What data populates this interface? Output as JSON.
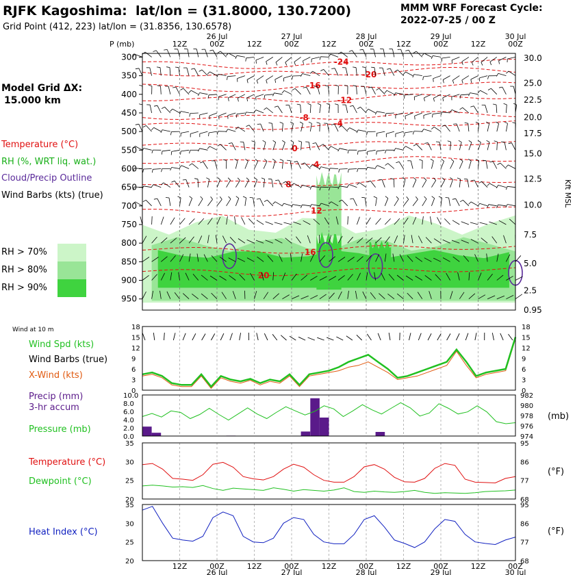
{
  "header": {
    "station": "RJFK Kagoshima:",
    "latlon_title": "lat/lon = (31.8000, 130.7200)",
    "gridpoint": "Grid Point (412, 223) lat/lon = (31.8356, 130.6578)",
    "model_line1": "MMM WRF Forecast Cycle:",
    "model_line2": "2022-07-25 / 00  Z",
    "grid_label_1": "Model Grid ΔX:",
    "grid_label_2": "15.000 km"
  },
  "time_axis": {
    "hours": [
      "12Z",
      "00Z",
      "12Z",
      "00Z",
      "12Z",
      "00Z",
      "12Z",
      "00Z",
      "12Z",
      "00Z"
    ],
    "hour_values": [
      12,
      24,
      36,
      48,
      60,
      72,
      84,
      96,
      108,
      120
    ],
    "dates": [
      "26 Jul",
      "27 Jul",
      "28 Jul",
      "29 Jul",
      "30 Jul"
    ],
    "date_values": [
      24,
      48,
      72,
      96,
      120
    ],
    "range": [
      0,
      120
    ]
  },
  "legend": {
    "temperature": "Temperature (°C)",
    "rh": "RH (%, WRT liq. wat.)",
    "cloud": "Cloud/Precip Outline",
    "barbs": "Wind Barbs (kts) (true)",
    "rh70": "RH > 70%",
    "rh80": "RH > 80%",
    "rh90": "RH > 90%",
    "colors": {
      "rh70": "#ccf5c8",
      "rh80": "#99e597",
      "rh90": "#3fd33f",
      "temp": "#e01010",
      "cloud": "#5a2a9a",
      "rh_text": "#19b019"
    }
  },
  "chart_data": [
    {
      "type": "cross-section",
      "ylabel": "P (mb)",
      "pressure_levels": [
        300,
        350,
        400,
        450,
        500,
        550,
        600,
        650,
        700,
        750,
        800,
        850,
        900,
        950
      ],
      "ylim_mb": [
        290,
        980
      ],
      "kft_label": "Kft MSL",
      "kft_ticks": [
        {
          "label": "30.0",
          "mb": 303
        },
        {
          "label": "25.0",
          "mb": 370
        },
        {
          "label": "22.5",
          "mb": 415
        },
        {
          "label": "20.0",
          "mb": 462
        },
        {
          "label": "17.5",
          "mb": 505
        },
        {
          "label": "15.0",
          "mb": 560
        },
        {
          "label": "12.5",
          "mb": 628
        },
        {
          "label": "10.0",
          "mb": 698
        },
        {
          "label": "7.5",
          "mb": 778
        },
        {
          "label": "5.0",
          "mb": 855
        },
        {
          "label": "2.5",
          "mb": 928
        },
        {
          "label": "0.95",
          "mb": 980
        }
      ],
      "temperature_contours_c": [
        {
          "label": "-24",
          "t": 64,
          "mb": 318
        },
        {
          "label": "-20",
          "t": 73,
          "mb": 340
        },
        {
          "label": "-16",
          "t": 55,
          "mb": 380
        },
        {
          "label": "-12",
          "t": 65,
          "mb": 410
        },
        {
          "label": "-8",
          "t": 52,
          "mb": 458
        },
        {
          "label": "-4",
          "t": 63,
          "mb": 482
        },
        {
          "label": "0",
          "t": 49,
          "mb": 535
        },
        {
          "label": "4",
          "t": 56,
          "mb": 578
        },
        {
          "label": "8",
          "t": 47,
          "mb": 635
        },
        {
          "label": "12",
          "t": 56,
          "mb": 715
        },
        {
          "label": "16",
          "t": 54,
          "mb": 815
        },
        {
          "label": "20",
          "t": 39,
          "mb": 875
        }
      ],
      "rh_regions": [
        {
          "level": "70",
          "t0": 0,
          "t1": 120,
          "mb0": 740,
          "mb1": 960
        },
        {
          "level": "80",
          "t0": 3,
          "t1": 120,
          "mb0": 795,
          "mb1": 955
        },
        {
          "level": "90",
          "t0": 5,
          "t1": 118,
          "mb0": 825,
          "mb1": 920
        },
        {
          "level": "80",
          "t0": 56,
          "t1": 64,
          "mb0": 620,
          "mb1": 780
        },
        {
          "level": "90",
          "t0": 56,
          "t1": 64,
          "mb0": 780,
          "mb1": 925
        },
        {
          "level": "90",
          "t0": 73,
          "t1": 80,
          "mb0": 800,
          "mb1": 890
        }
      ],
      "cloud_outlines": [
        {
          "t": 28,
          "mb": 835
        },
        {
          "t": 59,
          "mb": 832
        },
        {
          "t": 75,
          "mb": 862
        },
        {
          "t": 120,
          "mb": 880
        }
      ]
    },
    {
      "type": "line",
      "title": "Wind at 10 m",
      "series": [
        {
          "name": "Wind Spd (kts)",
          "color": "#20c020",
          "values": [
            4.5,
            5,
            4,
            2,
            1.5,
            1.5,
            4.5,
            1,
            4,
            3,
            2.5,
            3.2,
            2,
            3,
            2.5,
            4.5,
            1.5,
            4.5,
            5,
            5.5,
            6.5,
            8,
            9,
            10,
            8,
            6,
            3.5,
            4,
            5,
            6,
            7,
            8,
            11.5,
            8,
            4,
            5,
            5.5,
            6,
            15
          ]
        },
        {
          "name": "X-Wind (kts)",
          "color": "#e05a10",
          "values": [
            4,
            4.5,
            3.5,
            1.5,
            1,
            1,
            4,
            0.5,
            3.5,
            2.5,
            2,
            2.8,
            1.5,
            2.5,
            2,
            4,
            1,
            4,
            4.5,
            5,
            5.5,
            6.5,
            7,
            8,
            6.5,
            5,
            3,
            3.5,
            4,
            5,
            6,
            7,
            11,
            7,
            3.5,
            4.5,
            5,
            5.5,
            14.5
          ]
        }
      ],
      "labels": {
        "spd": "Wind Spd (kts)",
        "barbs": "Wind Barbs (true)",
        "xwind": "X-Wind (kts)"
      },
      "ylim": [
        0,
        18
      ],
      "yticks": [
        18,
        15,
        12,
        9,
        6,
        3,
        0
      ]
    },
    {
      "type": "bar+line",
      "precip": {
        "name": "Precip (mm) 3-hr accum",
        "color": "#5a1a8a",
        "bars": [
          {
            "t": 1.5,
            "v": 2.3
          },
          {
            "t": 4.5,
            "v": 0.8
          },
          {
            "t": 28.5,
            "v": 0.1
          },
          {
            "t": 52.5,
            "v": 1.1
          },
          {
            "t": 55.5,
            "v": 9.2
          },
          {
            "t": 58.5,
            "v": 4.5
          },
          {
            "t": 76.5,
            "v": 1.0
          }
        ],
        "ylim": [
          0,
          10
        ],
        "yticks": [
          "10.0",
          "8.0",
          "6.0",
          "4.0",
          "2.0",
          "0.0"
        ]
      },
      "pressure": {
        "name": "Pressure (mb)",
        "color": "#20c020",
        "values": [
          977.8,
          978.4,
          977.7,
          978.9,
          978.6,
          977.4,
          978.2,
          979.4,
          978.2,
          977.1,
          978.3,
          979.5,
          978.3,
          977.4,
          978.6,
          979.7,
          978.9,
          978.1,
          978.8,
          979.9,
          979.3,
          977.8,
          978.9,
          980.1,
          979.1,
          978.3,
          979.4,
          980.5,
          979.5,
          977.9,
          978.5,
          980.3,
          979.4,
          978.3,
          978.7,
          979.9,
          978.7,
          976.8,
          976.4,
          976.6
        ],
        "ylim": [
          974,
          982
        ],
        "yticks": [
          982,
          980,
          978,
          976,
          974
        ],
        "unit": "(mb)"
      },
      "labels": {
        "precip1": "Precip (mm)",
        "precip2": "3-hr accum",
        "pressure": "Pressure (mb)"
      }
    },
    {
      "type": "line",
      "series": [
        {
          "name": "Temperature (°C)",
          "color": "#e01010",
          "values": [
            29.2,
            29.5,
            28,
            25.5,
            25.3,
            25,
            26.5,
            29.3,
            29.8,
            28.5,
            26,
            25.4,
            25.1,
            26,
            28,
            29.3,
            28.5,
            26.5,
            25,
            24.5,
            24.5,
            26,
            28.6,
            29.2,
            28,
            25.8,
            24.6,
            24.5,
            25.5,
            28.2,
            29.5,
            29,
            25.3,
            24.5,
            24.4,
            24.3,
            25.5,
            26
          ]
        },
        {
          "name": "Dewpoint (°C)",
          "color": "#20c020",
          "values": [
            23.5,
            23.7,
            23.5,
            23.2,
            23.3,
            23.1,
            23.6,
            22.8,
            22.3,
            22.9,
            22.7,
            22.5,
            22.3,
            23.0,
            22.6,
            22.1,
            22.5,
            22.3,
            22.1,
            22.4,
            23.0,
            22.0,
            21.8,
            22.1,
            21.9,
            21.8,
            22.0,
            22.3,
            21.8,
            21.5,
            21.7,
            21.6,
            21.5,
            21.7,
            22.0,
            22.1,
            22.2,
            22.4
          ]
        }
      ],
      "labels": {
        "temp": "Temperature (°C)",
        "dew": "Dewpoint (°C)",
        "f_unit": "(°F)"
      },
      "ylim": [
        20,
        35
      ],
      "yticks_c": [
        35,
        30,
        25,
        20
      ],
      "yticks_f": [
        95,
        86,
        77,
        68
      ]
    },
    {
      "type": "line",
      "series": [
        {
          "name": "Heat Index (°C)",
          "color": "#1020c0",
          "values": [
            33.5,
            34.5,
            30,
            26,
            25.5,
            25.2,
            26.5,
            31.5,
            33,
            32,
            26.5,
            25,
            24.8,
            26,
            30,
            31.5,
            31,
            27,
            25,
            24.5,
            24.5,
            27,
            31,
            32,
            29,
            25.5,
            24.6,
            23.5,
            25,
            28.5,
            31,
            30.5,
            27,
            25,
            24.6,
            24.3,
            25.5,
            26.3
          ]
        }
      ],
      "labels": {
        "hi": "Heat Index (°C)",
        "f_unit": "(°F)"
      },
      "ylim": [
        20,
        35
      ],
      "yticks_c": [
        35,
        30,
        25,
        20
      ],
      "yticks_f": [
        95,
        86,
        77,
        68
      ]
    }
  ]
}
